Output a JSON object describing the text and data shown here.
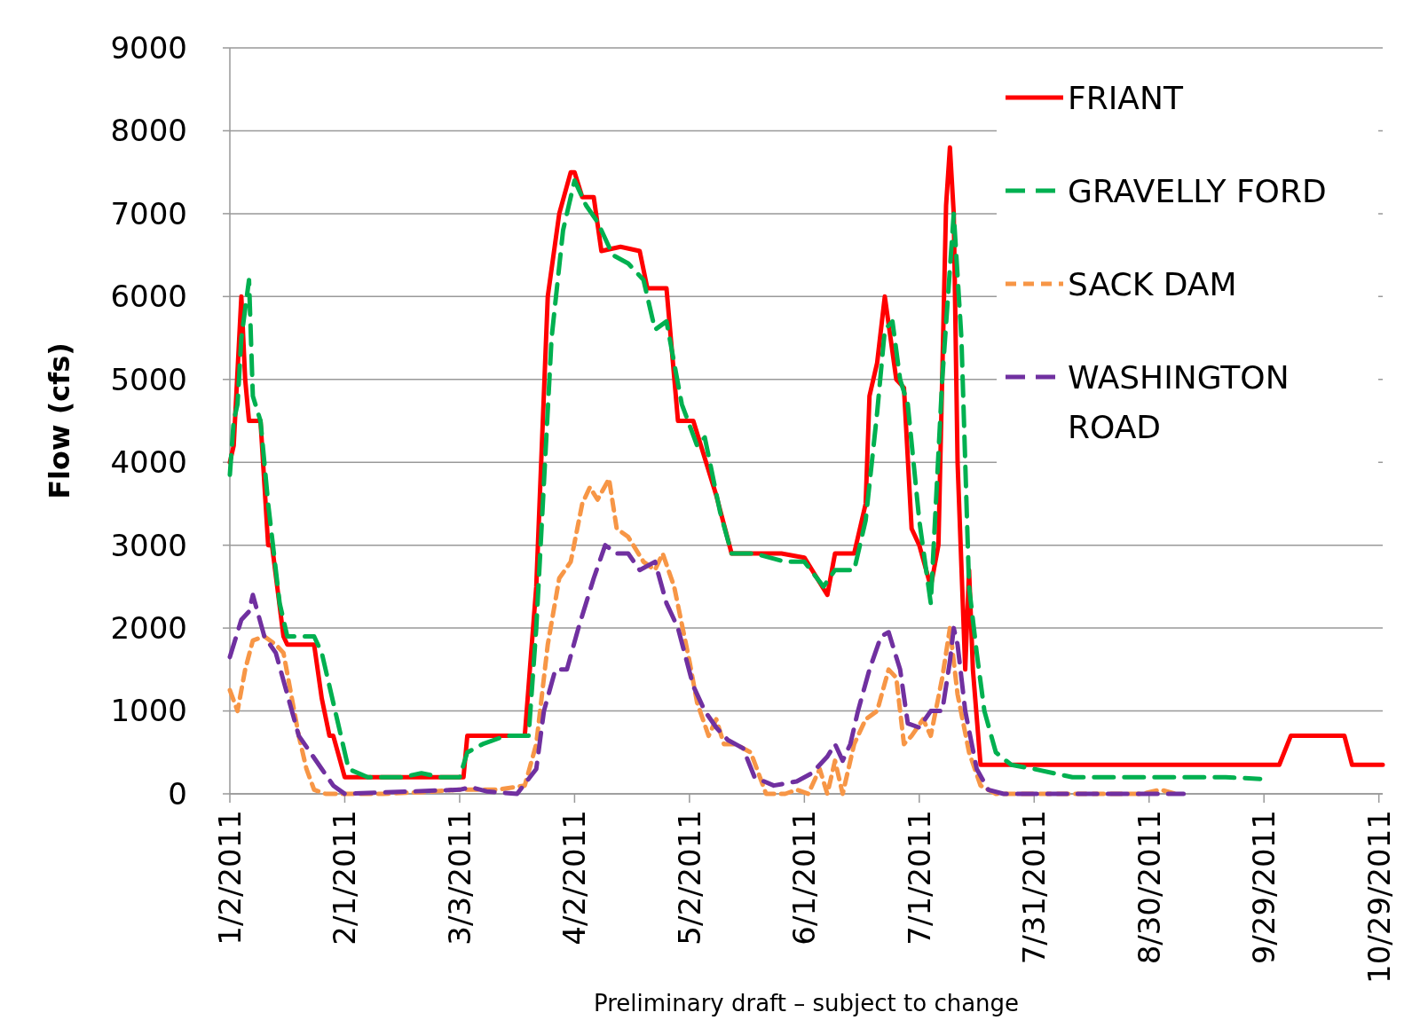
{
  "chart_data": {
    "type": "line",
    "ylabel": "Flow (cfs)",
    "xlim": [
      "2011-01-02",
      "2011-10-30"
    ],
    "xticks": [
      {
        "value": "2011-01-02",
        "label": "1/2/2011"
      },
      {
        "value": "2011-02-01",
        "label": "2/1/2011"
      },
      {
        "value": "2011-03-03",
        "label": "3/3/2011"
      },
      {
        "value": "2011-04-02",
        "label": "4/2/2011"
      },
      {
        "value": "2011-05-02",
        "label": "5/2/2011"
      },
      {
        "value": "2011-06-01",
        "label": "6/1/2011"
      },
      {
        "value": "2011-07-01",
        "label": "7/1/2011"
      },
      {
        "value": "2011-07-31",
        "label": "7/31/2011"
      },
      {
        "value": "2011-08-30",
        "label": "8/30/2011"
      },
      {
        "value": "2011-09-29",
        "label": "9/29/2011"
      },
      {
        "value": "2011-10-29",
        "label": "10/29/2011"
      }
    ],
    "ylim": [
      0,
      9000
    ],
    "yticks": [
      0,
      1000,
      2000,
      3000,
      4000,
      5000,
      6000,
      7000,
      8000,
      9000
    ],
    "grid": "y",
    "legend": "top right",
    "annotations": [
      "Preliminary draft – subject to change"
    ],
    "series": [
      {
        "name": "FRIANT",
        "color": "#ff0000",
        "line_style": "solid",
        "x": [
          "2011-01-02",
          "2011-01-03",
          "2011-01-05",
          "2011-01-06",
          "2011-01-07",
          "2011-01-10",
          "2011-01-12",
          "2011-01-13",
          "2011-01-16",
          "2011-01-17",
          "2011-01-24",
          "2011-01-26",
          "2011-01-28",
          "2011-01-29",
          "2011-02-01",
          "2011-03-04",
          "2011-03-05",
          "2011-03-20",
          "2011-03-23",
          "2011-03-26",
          "2011-03-29",
          "2011-04-01",
          "2011-04-02",
          "2011-04-04",
          "2011-04-07",
          "2011-04-09",
          "2011-04-14",
          "2011-04-19",
          "2011-04-21",
          "2011-04-26",
          "2011-04-29",
          "2011-05-03",
          "2011-05-05",
          "2011-05-09",
          "2011-05-13",
          "2011-05-26",
          "2011-06-01",
          "2011-06-07",
          "2011-06-09",
          "2011-06-14",
          "2011-06-17",
          "2011-06-18",
          "2011-06-20",
          "2011-06-22",
          "2011-06-25",
          "2011-06-27",
          "2011-06-29",
          "2011-07-01",
          "2011-07-04",
          "2011-07-06",
          "2011-07-08",
          "2011-07-09",
          "2011-07-10",
          "2011-07-11",
          "2011-07-13",
          "2011-07-14",
          "2011-07-15",
          "2011-07-17",
          "2011-10-03",
          "2011-10-06",
          "2011-10-20",
          "2011-10-22",
          "2011-10-30"
        ],
        "values": [
          4000,
          4200,
          6000,
          5000,
          4500,
          4500,
          3000,
          3000,
          1900,
          1800,
          1800,
          1150,
          700,
          700,
          200,
          200,
          700,
          700,
          2500,
          6000,
          7000,
          7500,
          7500,
          7200,
          7200,
          6550,
          6600,
          6550,
          6100,
          6100,
          4500,
          4500,
          4200,
          3600,
          2900,
          2900,
          2850,
          2400,
          2900,
          2900,
          3500,
          4800,
          5200,
          6000,
          5000,
          4900,
          3200,
          3000,
          2500,
          3000,
          7100,
          7800,
          7000,
          4000,
          1500,
          2700,
          1500,
          350,
          350,
          700,
          700,
          350,
          350
        ]
      },
      {
        "name": "GRAVELLY FORD",
        "color": "#00b050",
        "line_style": "dashed",
        "x": [
          "2011-01-02",
          "2011-01-03",
          "2011-01-04",
          "2011-01-05",
          "2011-01-07",
          "2011-01-08",
          "2011-01-10",
          "2011-01-12",
          "2011-01-15",
          "2011-01-17",
          "2011-01-24",
          "2011-01-26",
          "2011-01-30",
          "2011-02-02",
          "2011-02-07",
          "2011-02-16",
          "2011-02-21",
          "2011-02-26",
          "2011-03-03",
          "2011-03-05",
          "2011-03-09",
          "2011-03-15",
          "2011-03-21",
          "2011-03-23",
          "2011-03-27",
          "2011-03-30",
          "2011-04-02",
          "2011-04-05",
          "2011-04-08",
          "2011-04-12",
          "2011-04-16",
          "2011-04-20",
          "2011-04-23",
          "2011-04-26",
          "2011-04-30",
          "2011-05-04",
          "2011-05-06",
          "2011-05-10",
          "2011-05-13",
          "2011-05-19",
          "2011-05-27",
          "2011-06-01",
          "2011-06-06",
          "2011-06-09",
          "2011-06-14",
          "2011-06-17",
          "2011-06-20",
          "2011-06-22",
          "2011-06-24",
          "2011-06-26",
          "2011-06-28",
          "2011-07-01",
          "2011-07-04",
          "2011-07-07",
          "2011-07-10",
          "2011-07-12",
          "2011-07-14",
          "2011-07-16",
          "2011-07-18",
          "2011-07-21",
          "2011-07-25",
          "2011-07-31",
          "2011-08-10",
          "2011-09-19",
          "2011-09-28"
        ],
        "values": [
          3850,
          4500,
          4700,
          5500,
          6200,
          4800,
          4500,
          3500,
          2300,
          1900,
          1900,
          1700,
          900,
          300,
          200,
          200,
          250,
          200,
          200,
          500,
          600,
          700,
          700,
          2000,
          5500,
          6800,
          7400,
          7100,
          6900,
          6500,
          6400,
          6200,
          5600,
          5700,
          4700,
          4200,
          4300,
          3400,
          2900,
          2900,
          2800,
          2800,
          2500,
          2700,
          2700,
          3300,
          4600,
          5600,
          5700,
          5000,
          4700,
          3300,
          2300,
          5000,
          7000,
          5500,
          2500,
          1700,
          1000,
          500,
          350,
          300,
          200,
          200,
          180
        ]
      },
      {
        "name": "SACK DAM",
        "color": "#f79646",
        "line_style": "dotted",
        "x": [
          "2011-01-02",
          "2011-01-04",
          "2011-01-06",
          "2011-01-08",
          "2011-01-11",
          "2011-01-14",
          "2011-01-16",
          "2011-01-18",
          "2011-01-20",
          "2011-01-22",
          "2011-01-24",
          "2011-01-27",
          "2011-02-11",
          "2011-02-21",
          "2011-03-03",
          "2011-03-13",
          "2011-03-20",
          "2011-03-23",
          "2011-03-26",
          "2011-03-29",
          "2011-04-01",
          "2011-04-04",
          "2011-04-06",
          "2011-04-08",
          "2011-04-11",
          "2011-04-13",
          "2011-04-16",
          "2011-04-20",
          "2011-04-23",
          "2011-04-25",
          "2011-04-28",
          "2011-05-02",
          "2011-05-04",
          "2011-05-07",
          "2011-05-09",
          "2011-05-11",
          "2011-05-14",
          "2011-05-18",
          "2011-05-22",
          "2011-05-27",
          "2011-05-30",
          "2011-06-02",
          "2011-06-05",
          "2011-06-07",
          "2011-06-09",
          "2011-06-11",
          "2011-06-14",
          "2011-06-17",
          "2011-06-20",
          "2011-06-23",
          "2011-06-25",
          "2011-06-27",
          "2011-06-29",
          "2011-07-02",
          "2011-07-04",
          "2011-07-07",
          "2011-07-09",
          "2011-07-11",
          "2011-07-14",
          "2011-07-17",
          "2011-07-21",
          "2011-08-28",
          "2011-09-02",
          "2011-09-06"
        ],
        "values": [
          1250,
          1000,
          1500,
          1850,
          1900,
          1800,
          1700,
          1200,
          700,
          300,
          50,
          0,
          0,
          20,
          50,
          50,
          100,
          600,
          1800,
          2600,
          2800,
          3500,
          3700,
          3550,
          3800,
          3200,
          3100,
          2800,
          2700,
          2900,
          2500,
          1600,
          1100,
          700,
          900,
          600,
          600,
          500,
          0,
          0,
          50,
          0,
          300,
          0,
          400,
          0,
          600,
          900,
          1000,
          1500,
          1400,
          600,
          700,
          900,
          700,
          1400,
          2000,
          1200,
          500,
          100,
          0,
          0,
          50,
          0
        ]
      },
      {
        "name": "WASHINGTON ROAD",
        "color": "#7030a0",
        "line_style": "dashed",
        "x": [
          "2011-01-02",
          "2011-01-05",
          "2011-01-07",
          "2011-01-08",
          "2011-01-11",
          "2011-01-14",
          "2011-01-17",
          "2011-01-20",
          "2011-01-23",
          "2011-01-26",
          "2011-01-29",
          "2011-02-01",
          "2011-03-03",
          "2011-03-06",
          "2011-03-10",
          "2011-03-18",
          "2011-03-23",
          "2011-03-25",
          "2011-03-28",
          "2011-03-31",
          "2011-04-03",
          "2011-04-07",
          "2011-04-10",
          "2011-04-13",
          "2011-04-16",
          "2011-04-19",
          "2011-04-23",
          "2011-04-26",
          "2011-04-29",
          "2011-05-03",
          "2011-05-06",
          "2011-05-09",
          "2011-05-12",
          "2011-05-16",
          "2011-05-19",
          "2011-05-24",
          "2011-05-30",
          "2011-06-03",
          "2011-06-07",
          "2011-06-09",
          "2011-06-11",
          "2011-06-13",
          "2011-06-15",
          "2011-06-18",
          "2011-06-21",
          "2011-06-23",
          "2011-06-26",
          "2011-06-28",
          "2011-07-01",
          "2011-07-04",
          "2011-07-07",
          "2011-07-09",
          "2011-07-10",
          "2011-07-11",
          "2011-07-13",
          "2011-07-16",
          "2011-07-19",
          "2011-07-23",
          "2011-09-06",
          "2011-09-08"
        ],
        "values": [
          1650,
          2100,
          2200,
          2400,
          1900,
          1700,
          1200,
          700,
          500,
          300,
          100,
          0,
          50,
          80,
          30,
          0,
          300,
          1000,
          1500,
          1500,
          2000,
          2600,
          3000,
          2900,
          2900,
          2700,
          2800,
          2300,
          2000,
          1300,
          1000,
          800,
          650,
          550,
          200,
          100,
          150,
          250,
          450,
          600,
          400,
          600,
          1000,
          1500,
          1900,
          1950,
          1500,
          850,
          800,
          1000,
          1000,
          1600,
          2000,
          1800,
          1000,
          300,
          50,
          0,
          0,
          0
        ]
      }
    ]
  }
}
